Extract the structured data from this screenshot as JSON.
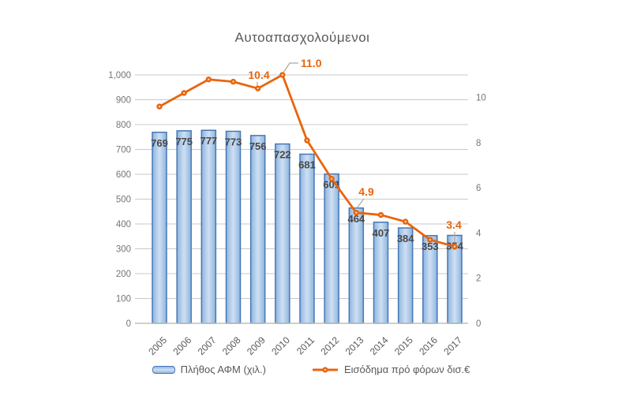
{
  "title": "Αυτοαπασχολούμενοι",
  "colors": {
    "bar_border": "#4578B6",
    "bar_fill_edge": "#8FB4DE",
    "bar_fill_center": "#CEE0F3",
    "line": "#E8650D",
    "callout_text": "#E8650D",
    "callout_leader": "#A6A6A6",
    "grid": "#C9C9C9",
    "axis_line": "#BFBFBF",
    "axis_text": "#757575",
    "category_text": "#595959",
    "bar_label_text": "#474747",
    "title_text": "#595959"
  },
  "chart_data": {
    "type": "combo-bar-line",
    "title": "Αυτοαπασχολούμενοι",
    "categories": [
      "2005",
      "2006",
      "2007",
      "2008",
      "2009",
      "2010",
      "2011",
      "2012",
      "2013",
      "2014",
      "2015",
      "2016",
      "2017"
    ],
    "series": [
      {
        "name": "Πλήθος ΑΦΜ (χιλ.)",
        "type": "bar",
        "axis": "left",
        "values": [
          769,
          775,
          777,
          773,
          756,
          722,
          681,
          601,
          464,
          407,
          384,
          353,
          354
        ]
      },
      {
        "name": "Εισόδημα πρό φόρων δισ.€",
        "type": "line",
        "axis": "right",
        "values": [
          9.6,
          10.2,
          10.8,
          10.7,
          10.4,
          11.0,
          8.1,
          6.4,
          4.9,
          4.8,
          4.5,
          3.7,
          3.4
        ],
        "callouts": [
          {
            "index": 4,
            "label": "10.4"
          },
          {
            "index": 5,
            "label": "11.0"
          },
          {
            "index": 8,
            "label": "4.9"
          },
          {
            "index": 12,
            "label": "3.4"
          }
        ]
      }
    ],
    "left_axis": {
      "min": 0,
      "max": 1000,
      "step": 100,
      "tick_labels": [
        "0",
        "100",
        "200",
        "300",
        "400",
        "500",
        "600",
        "700",
        "800",
        "900",
        "1,000"
      ]
    },
    "right_axis": {
      "min": 0,
      "max": 11,
      "tick_values": [
        0,
        2,
        4,
        6,
        8,
        10
      ],
      "tick_labels": [
        "0",
        "2",
        "4",
        "6",
        "8",
        "10"
      ]
    },
    "grid": true,
    "legend_position": "bottom"
  }
}
